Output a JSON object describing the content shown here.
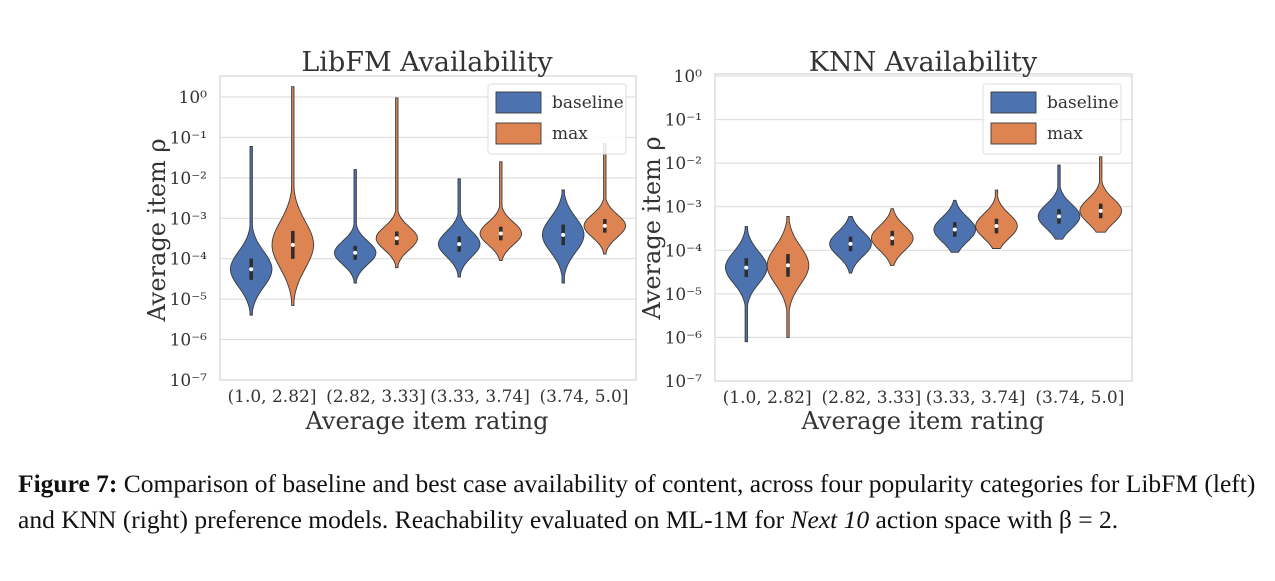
{
  "figure": {
    "caption_label": "Figure 7:",
    "caption_text_1": " Comparison of baseline and best case availability of content, across four popularity categories for LibFM (left) and KNN (right) preference models. Reachability evaluated on ML-1M for ",
    "caption_italic": "Next 10",
    "caption_text_2": " action space with β = 2."
  },
  "colors": {
    "baseline": "#4c72b0",
    "max": "#dd8452",
    "grid": "#d9d9d9",
    "frame": "#cccccc"
  },
  "chart_data": [
    {
      "type": "violin",
      "title": "LibFM Availability",
      "xlabel": "Average item rating",
      "ylabel": "Average item ρ",
      "yscale": "log",
      "ylim": [
        1e-07,
        3
      ],
      "ytick_labels": [
        "10⁰",
        "10⁻¹",
        "10⁻²",
        "10⁻³",
        "10⁻⁴",
        "10⁻⁵",
        "10⁻⁶",
        "10⁻⁷"
      ],
      "grid": true,
      "legend": "top-right",
      "categories": [
        "(1.0, 2.82]",
        "(2.82, 3.33]",
        "(3.33, 3.74]",
        "(3.74, 5.0]"
      ],
      "series": [
        {
          "name": "baseline",
          "key": "baseline",
          "min": [
            4e-06,
            2.5e-05,
            3.5e-05,
            2.5e-05
          ],
          "median": [
            5.5e-05,
            0.00014,
            0.00023,
            0.00039
          ],
          "max": [
            0.06,
            0.016,
            0.0095,
            0.005
          ]
        },
        {
          "name": "max",
          "key": "max",
          "min": [
            7e-06,
            6e-05,
            9e-05,
            0.00013
          ],
          "median": [
            0.00022,
            0.00032,
            0.00042,
            0.00065
          ],
          "max": [
            1.8,
            0.95,
            0.025,
            0.07
          ]
        }
      ]
    },
    {
      "type": "violin",
      "title": "KNN Availability",
      "xlabel": "Average item rating",
      "ylabel": "Average item ρ",
      "yscale": "log",
      "ylim": [
        1e-07,
        1
      ],
      "ytick_labels": [
        "10⁰",
        "10⁻¹",
        "10⁻²",
        "10⁻³",
        "10⁻⁴",
        "10⁻⁵",
        "10⁻⁶",
        "10⁻⁷"
      ],
      "grid": true,
      "legend": "top-right",
      "categories": [
        "(1.0, 2.82]",
        "(2.82, 3.33]",
        "(3.33, 3.74]",
        "(3.74, 5.0]"
      ],
      "series": [
        {
          "name": "baseline",
          "key": "baseline",
          "min": [
            8e-07,
            3e-05,
            9e-05,
            0.00018
          ],
          "median": [
            4e-05,
            0.00014,
            0.0003,
            0.0006
          ],
          "max": [
            0.00035,
            0.0006,
            0.0014,
            0.009
          ]
        },
        {
          "name": "max",
          "key": "max",
          "min": [
            1e-06,
            4.5e-05,
            0.00011,
            0.00026
          ],
          "median": [
            4.5e-05,
            0.00019,
            0.00036,
            0.0008
          ],
          "max": [
            0.0006,
            0.0009,
            0.0024,
            0.014
          ]
        }
      ]
    }
  ]
}
